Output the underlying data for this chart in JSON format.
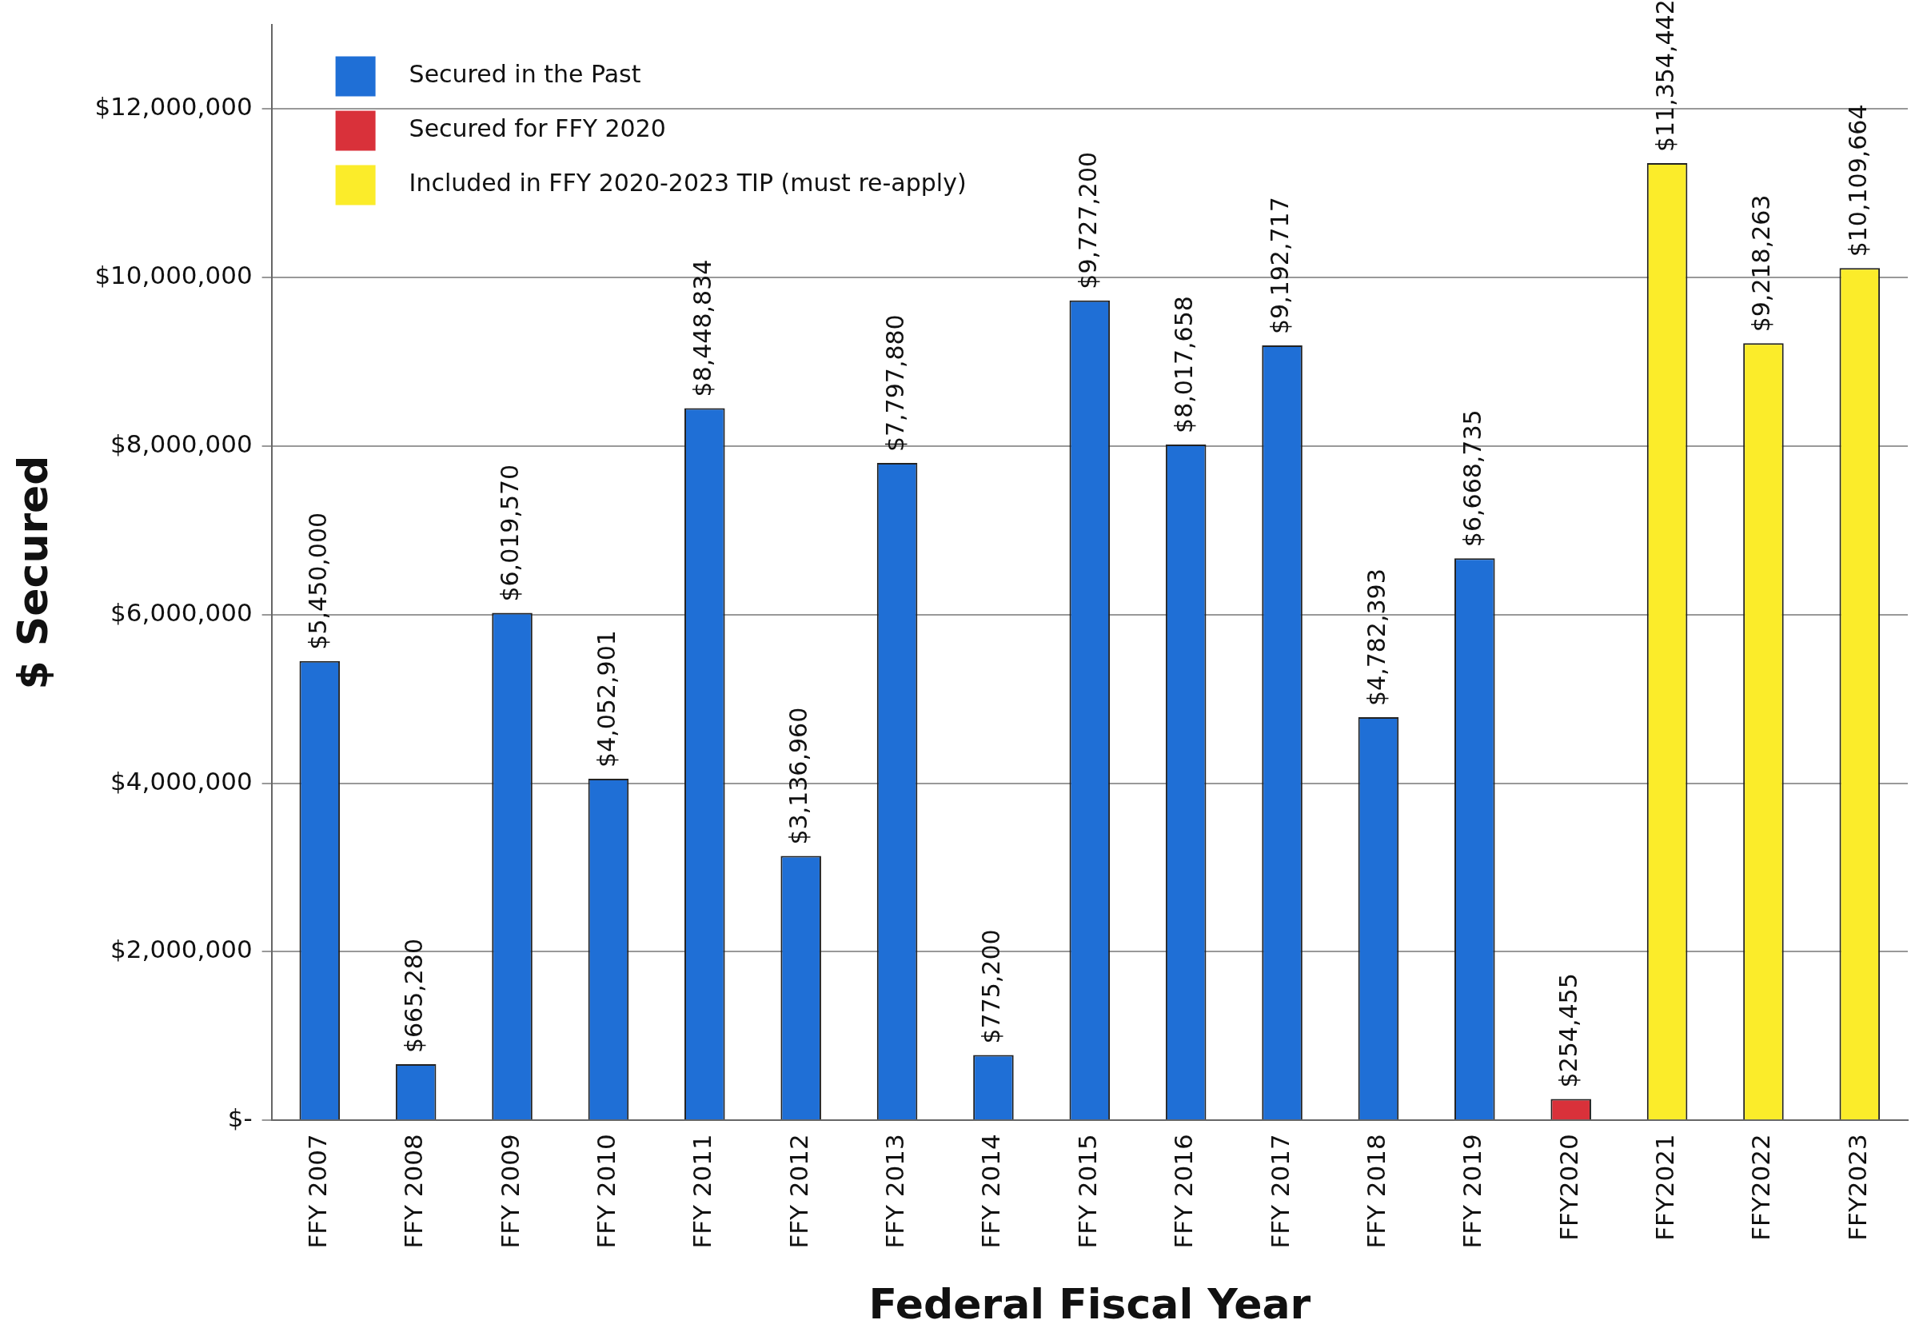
{
  "chart_data": {
    "type": "bar",
    "xlabel": "Federal Fiscal Year",
    "ylabel": "$ Secured",
    "categories": [
      "FFY 2007",
      "FFY 2008",
      "FFY 2009",
      "FFY 2010",
      "FFY 2011",
      "FFY 2012",
      "FFY 2013",
      "FFY 2014",
      "FFY 2015",
      "FFY 2016",
      "FFY 2017",
      "FFY 2018",
      "FFY 2019",
      "FFY2020",
      "FFY2021",
      "FFY2022",
      "FFY2023"
    ],
    "series": [
      {
        "name": "Secured in the Past",
        "color": "#1f6fd6",
        "values": [
          5450000,
          665280,
          6019570,
          4052901,
          8448834,
          3136960,
          7797880,
          775200,
          9727200,
          8017658,
          9192717,
          4782393,
          6668735,
          null,
          null,
          null,
          null
        ],
        "value_labels": [
          "$5,450,000",
          "$665,280",
          "$6,019,570",
          "$4,052,901",
          "$8,448,834",
          "$3,136,960",
          "$7,797,880",
          "$775,200",
          "$9,727,200",
          "$8,017,658",
          "$9,192,717",
          "$4,782,393",
          "$6,668,735",
          null,
          null,
          null,
          null
        ]
      },
      {
        "name": "Secured for FFY 2020",
        "color": "#d9313a",
        "values": [
          null,
          null,
          null,
          null,
          null,
          null,
          null,
          null,
          null,
          null,
          null,
          null,
          null,
          254455,
          null,
          null,
          null
        ],
        "value_labels": [
          null,
          null,
          null,
          null,
          null,
          null,
          null,
          null,
          null,
          null,
          null,
          null,
          null,
          "$254,455",
          null,
          null,
          null
        ]
      },
      {
        "name": "Included in FFY 2020-2023 TIP (must re-apply)",
        "color": "#fbec2a",
        "values": [
          null,
          null,
          null,
          null,
          null,
          null,
          null,
          null,
          null,
          null,
          null,
          null,
          null,
          null,
          11354442,
          9218263,
          10109664
        ],
        "value_labels": [
          null,
          null,
          null,
          null,
          null,
          null,
          null,
          null,
          null,
          null,
          null,
          null,
          null,
          null,
          "$11,354,442",
          "$9,218,263",
          "$10,109,664"
        ]
      }
    ],
    "ylim": [
      0,
      13000000
    ],
    "yticks": [
      {
        "value": 0,
        "label": "$-"
      },
      {
        "value": 2000000,
        "label": "$2,000,000"
      },
      {
        "value": 4000000,
        "label": "$4,000,000"
      },
      {
        "value": 6000000,
        "label": "$6,000,000"
      },
      {
        "value": 8000000,
        "label": "$8,000,000"
      },
      {
        "value": 10000000,
        "label": "$10,000,000"
      },
      {
        "value": 12000000,
        "label": "$12,000,000"
      }
    ],
    "grid": "y",
    "legend": "top left"
  }
}
